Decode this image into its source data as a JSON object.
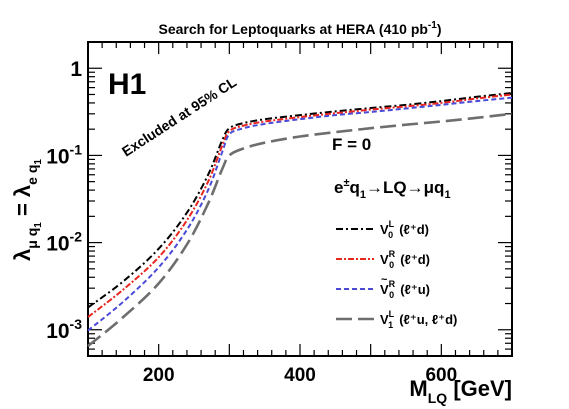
{
  "chart_data": {
    "type": "line",
    "title": "Search for Leptoquarks at HERA (410 pb",
    "title_sup": "-1",
    "title_end": ")",
    "logo": "H1",
    "xlabel_main": "M",
    "xlabel_sub": "LQ",
    "xlabel_unit": " [GeV]",
    "ylabel_left": "λ",
    "ylabel_sub1": "μ q",
    "ylabel_sub1b": "1",
    "ylabel_eq": " = λ",
    "ylabel_sub2": "e q",
    "ylabel_sub2b": "1",
    "xlim": [
      100,
      700
    ],
    "ylim": [
      0.0005,
      2.0
    ],
    "y_scale": "log",
    "x_ticks": [
      {
        "v": 200,
        "label": "200"
      },
      {
        "v": 400,
        "label": "400"
      },
      {
        "v": 600,
        "label": "600"
      }
    ],
    "y_ticks": [
      {
        "v": 1,
        "base": "1",
        "exp": ""
      },
      {
        "v": 0.1,
        "base": "10",
        "exp": "-1"
      },
      {
        "v": 0.01,
        "base": "10",
        "exp": "-2"
      },
      {
        "v": 0.001,
        "base": "10",
        "exp": "-3"
      }
    ],
    "annotation_excluded": "Excluded at 95% CL",
    "annotation_f": "F = 0",
    "process": {
      "a": "e",
      "a_sup": "±",
      "b": "q",
      "b_sub": "1",
      "c": "→LQ→μq",
      "c_sub": "1"
    },
    "legend_placement": "bottom-right",
    "series": [
      {
        "label": "V",
        "sub": "0",
        "sup": "L",
        "tilde": false,
        "paren": "(ℓ⁺d)",
        "color": "#000000",
        "dash": "7 3 2 3",
        "width": 2,
        "x": [
          100,
          150,
          200,
          240,
          270,
          290,
          300,
          320,
          350,
          400,
          450,
          500,
          550,
          600,
          650,
          700
        ],
        "y": [
          0.0018,
          0.0036,
          0.0085,
          0.022,
          0.06,
          0.15,
          0.205,
          0.235,
          0.26,
          0.29,
          0.32,
          0.35,
          0.38,
          0.42,
          0.47,
          0.52
        ]
      },
      {
        "label": "V",
        "sub": "0",
        "sup": "R",
        "tilde": false,
        "paren": "(ℓ⁺d)",
        "color": "#e8251e",
        "dash": "6 2 2 2",
        "width": 2,
        "x": [
          100,
          150,
          200,
          240,
          270,
          290,
          300,
          320,
          350,
          400,
          450,
          500,
          550,
          600,
          650,
          700
        ],
        "y": [
          0.0014,
          0.0029,
          0.0068,
          0.018,
          0.05,
          0.13,
          0.19,
          0.22,
          0.245,
          0.275,
          0.305,
          0.335,
          0.365,
          0.4,
          0.45,
          0.5
        ]
      },
      {
        "label": "V",
        "sub": "0",
        "sup": "R",
        "tilde": true,
        "paren": "(ℓ⁺u)",
        "color": "#4a4ad8",
        "dash": "5 3",
        "width": 2,
        "x": [
          100,
          150,
          200,
          240,
          270,
          290,
          300,
          320,
          350,
          400,
          450,
          500,
          550,
          600,
          650,
          700
        ],
        "y": [
          0.00098,
          0.0021,
          0.0052,
          0.014,
          0.04,
          0.11,
          0.175,
          0.205,
          0.23,
          0.26,
          0.29,
          0.315,
          0.345,
          0.38,
          0.42,
          0.46
        ]
      },
      {
        "label": "V",
        "sub": "1",
        "sup": "L",
        "tilde": false,
        "paren": "(ℓ⁺u, ℓ⁺d)",
        "color": "#6e6e6e",
        "dash": "16 6",
        "width": 2.6,
        "x": [
          100,
          150,
          200,
          240,
          270,
          290,
          300,
          320,
          350,
          400,
          450,
          500,
          550,
          600,
          650,
          700
        ],
        "y": [
          0.00065,
          0.0014,
          0.0034,
          0.0095,
          0.028,
          0.07,
          0.1,
          0.12,
          0.14,
          0.165,
          0.185,
          0.205,
          0.225,
          0.245,
          0.27,
          0.3
        ]
      }
    ]
  }
}
